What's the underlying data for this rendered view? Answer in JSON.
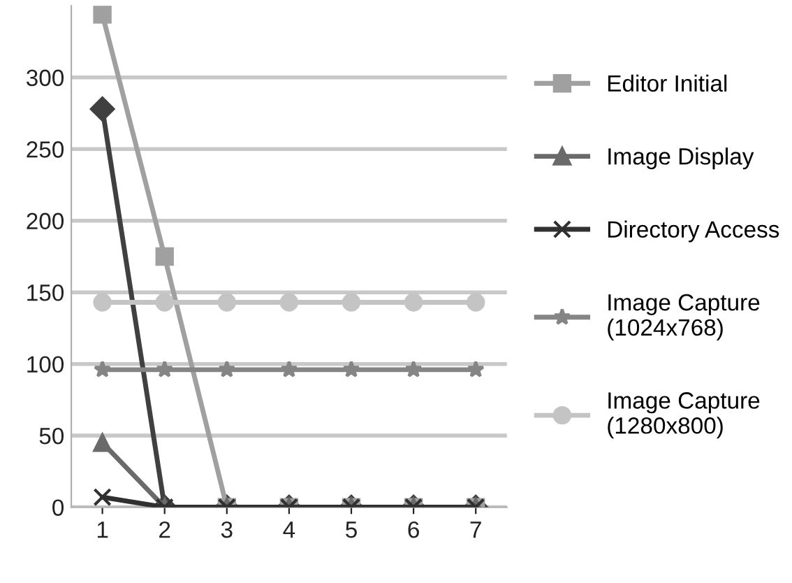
{
  "chart_data": {
    "type": "line",
    "categories": [
      "1",
      "2",
      "3",
      "4",
      "5",
      "6",
      "7"
    ],
    "ylim": [
      0,
      350
    ],
    "yticks": [
      0,
      50,
      100,
      150,
      200,
      250,
      300
    ],
    "grid": "y",
    "legend": "right",
    "series": [
      {
        "color": "#404040",
        "marker": "diamond",
        "values": [
          278,
          0,
          0,
          0,
          0,
          0,
          0
        ]
      },
      {
        "name": "Editor Initial",
        "color": "#a0a0a0",
        "marker": "square",
        "values": [
          344,
          175,
          0,
          0,
          0,
          0,
          0
        ]
      },
      {
        "name": "Image Display",
        "color": "#6a6a6a",
        "marker": "triangle",
        "values": [
          45,
          0,
          0,
          0,
          0,
          0,
          0
        ]
      },
      {
        "name": "Directory Access",
        "color": "#303030",
        "marker": "cross",
        "values": [
          7,
          0,
          0,
          0,
          0,
          0,
          0
        ]
      },
      {
        "name": "Image Capture\n(1024x768)",
        "color": "#858585",
        "marker": "star",
        "values": [
          96,
          96,
          96,
          96,
          96,
          96,
          96
        ]
      },
      {
        "name": "Image Capture\n(1280x800)",
        "color": "#c4c4c4",
        "marker": "circle",
        "values": [
          143,
          143,
          143,
          143,
          143,
          143,
          143
        ]
      }
    ]
  }
}
